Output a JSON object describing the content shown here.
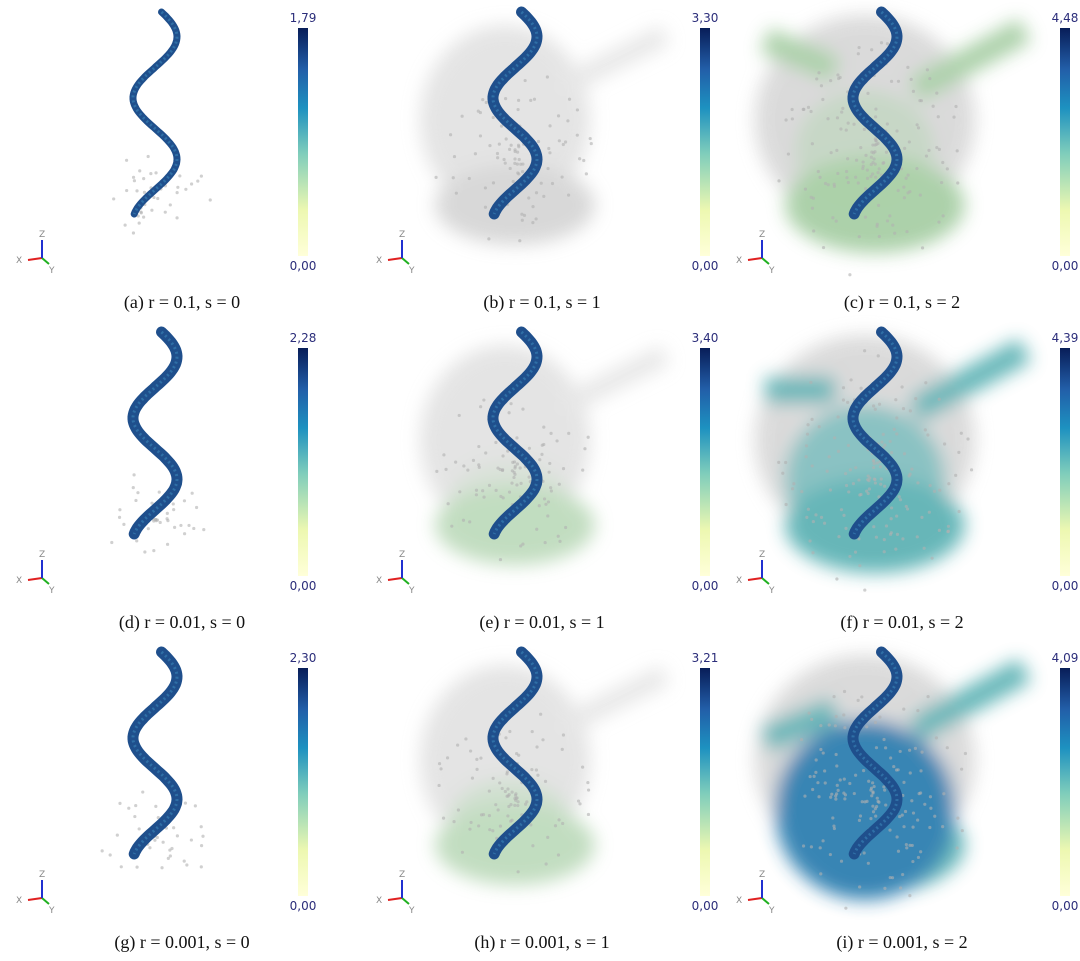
{
  "axis_labels": {
    "x": "X",
    "y": "Y",
    "z": "Z"
  },
  "panels": [
    {
      "caption": "(a) r = 0.1, s = 0",
      "max": "1,79",
      "min": "0,00"
    },
    {
      "caption": "(b) r = 0.1, s = 1",
      "max": "3,30",
      "min": "0,00"
    },
    {
      "caption": "(c) r = 0.1, s = 2",
      "max": "4,48",
      "min": "0,00"
    },
    {
      "caption": "(d) r = 0.01, s = 0",
      "max": "2,28",
      "min": "0,00"
    },
    {
      "caption": "(e) r = 0.01, s = 1",
      "max": "3,40",
      "min": "0,00"
    },
    {
      "caption": "(f) r = 0.01, s = 2",
      "max": "4,39",
      "min": "0,00"
    },
    {
      "caption": "(g) r = 0.001, s = 0",
      "max": "2,30",
      "min": "0,00"
    },
    {
      "caption": "(h) r = 0.001, s = 1",
      "max": "3,21",
      "min": "0,00"
    },
    {
      "caption": "(i) r = 0.001, s = 2",
      "max": "4,09",
      "min": "0,00"
    }
  ]
}
